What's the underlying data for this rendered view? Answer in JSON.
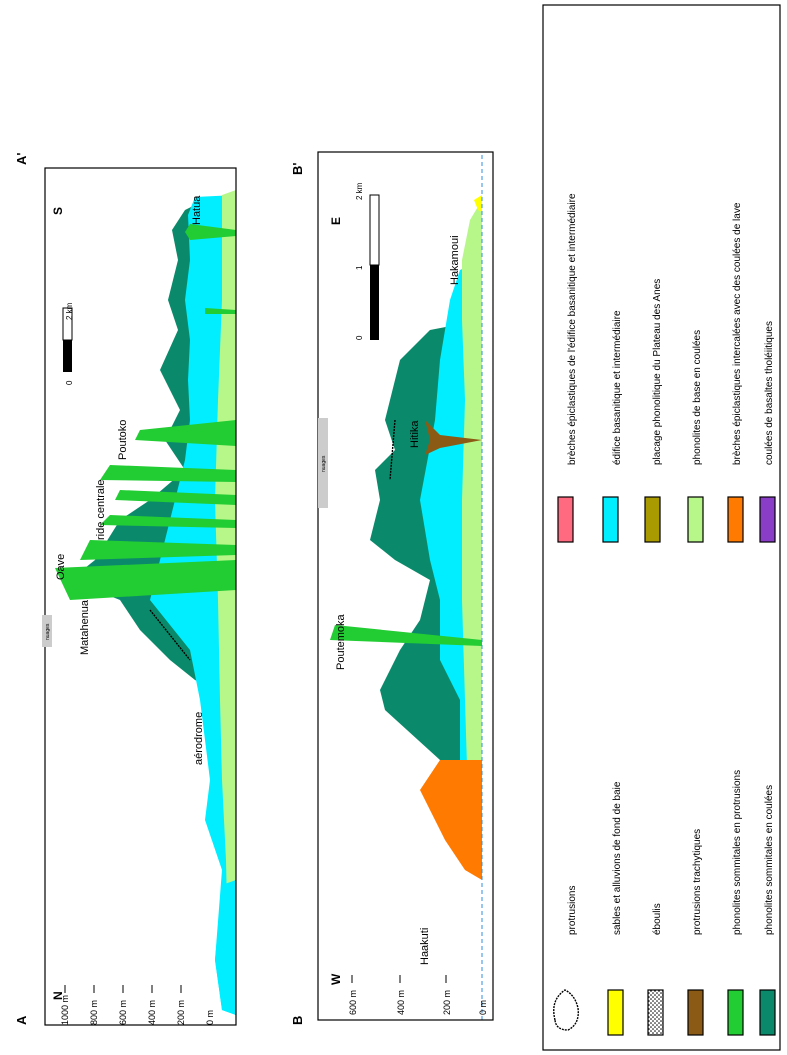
{
  "colors": {
    "protrusions_outline": "#000000",
    "sables": "#ffff00",
    "eboulis": "#ffffff",
    "protrusions_trachytiques": "#8b5a14",
    "phonolites_protrusions": "#22cc33",
    "phonolites_coulees": "#0a8a6a",
    "breches_epiclastiques": "#ff6a80",
    "edifice_basanitique": "#00eeff",
    "placage_phonolitique": "#a89a00",
    "phonolites_base": "#b7f78a",
    "breches_intercalees": "#ff7a00",
    "basaltes_tholeiitiques": "#8a3ec8",
    "sea_level": "#2f8fe0",
    "nuages_label_bg": "#cccccc"
  },
  "section_a": {
    "start_label": "A",
    "end_label": "A'",
    "west_label": "N",
    "east_label": "S",
    "elevation_labels": [
      "1000 m",
      "800 m",
      "600 m",
      "400 m",
      "200 m",
      "0 m"
    ],
    "place_labels": {
      "aerodrome": "aérodrome",
      "matahenua": "Matahenua",
      "oave": "Oave",
      "ride_centrale": "ride centrale",
      "poutoko": "Poutoko",
      "hatua": "Hatua"
    },
    "clouds_label": "nuages",
    "scale": {
      "tick_0": "0",
      "tick_1": "1",
      "tick_2": "2 km"
    }
  },
  "section_b": {
    "start_label": "B",
    "end_label": "B'",
    "west_label": "W",
    "east_label": "E",
    "elevation_labels": [
      "600 m",
      "400 m",
      "200 m",
      "0 m"
    ],
    "place_labels": {
      "haakuti": "Haakuti",
      "poutemoka": "Poutemoka",
      "hitika": "Hitika",
      "hakamoui": "Hakamoui"
    },
    "clouds_label": "nuages",
    "scale": {
      "tick_0": "0",
      "tick_1": "1",
      "tick_2": "2 km"
    }
  },
  "legend": {
    "protrusions": "protrusions",
    "sables": "sables et alluvions de fond de baie",
    "eboulis": "éboulis",
    "protrusions_trachytiques": "protrusions trachytiques",
    "phonolites_protrusions": "phonolites sommitales en protrusions",
    "phonolites_coulees": "phonolites sommitales en coulées",
    "breches_epiclastiques": "brèches épiclastiques de l'édifice basanitique et intermédiaire",
    "edifice_basanitique": "édifice basanitique et intermédiaire",
    "placage_phonolitique": "placage phonolitique du Plateau des Anes",
    "phonolites_base": "phonolites de base en coulées",
    "breches_intercalees": "brèches épiclastiques intercalées avec des coulées de lave",
    "basaltes_tholeiitiques": "coulées de basaltes tholéiitiques"
  }
}
